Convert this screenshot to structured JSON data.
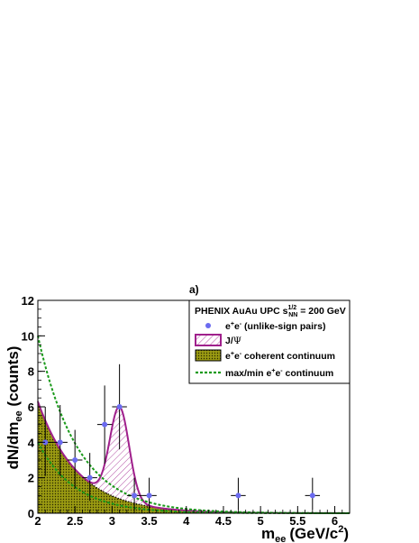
{
  "chart_data": {
    "type": "scatter",
    "panel_label": "a)",
    "xlabel": "m",
    "xlabel_sub": "ee",
    "xlabel_units": "(GeV/c",
    "xlabel_units_sup": "2",
    "xlabel_units_close": ")",
    "ylabel": "dN/dm",
    "ylabel_sub": "ee",
    "ylabel_units": " (counts)",
    "xlim": [
      2,
      6.2
    ],
    "ylim": [
      0,
      12
    ],
    "x_ticks": [
      "2",
      "2.5",
      "3",
      "3.5",
      "4",
      "4.5",
      "5",
      "5.5",
      "6"
    ],
    "y_ticks": [
      "0",
      "2",
      "4",
      "6",
      "8",
      "10",
      "12"
    ],
    "legend": {
      "title": "PHENIX AuAu UPC s",
      "title_sup": "1/2",
      "title_sub": "NN",
      "title_rest": " = 200 GeV",
      "entries": [
        {
          "key": "data",
          "label": "e",
          "sup1": "+",
          "mid": "e",
          "sup2": "-",
          "rest": " (unlike-sign pairs)"
        },
        {
          "key": "jpsi",
          "label": "J/",
          "greek": "Ψ"
        },
        {
          "key": "continuum",
          "label": "e",
          "sup1": "+",
          "mid": "e",
          "sup2": "-",
          "rest": " coherent continuum"
        },
        {
          "key": "maxmin",
          "label": "max/min e",
          "sup1": "+",
          "mid": "e",
          "sup2": "-",
          "rest": " continuum"
        }
      ]
    },
    "colors": {
      "data": "#6b6bf0",
      "jpsi": "#a0208c",
      "continuum": "#9a9a12",
      "maxmin": "#1a9a1a"
    },
    "data_points": [
      {
        "x": 2.1,
        "y": 4,
        "xerr": 0.1,
        "yerr_low": 1.9,
        "yerr_high": 2.0
      },
      {
        "x": 2.3,
        "y": 4,
        "xerr": 0.1,
        "yerr_low": 1.9,
        "yerr_high": 2.1
      },
      {
        "x": 2.5,
        "y": 3,
        "xerr": 0.1,
        "yerr_low": 1.6,
        "yerr_high": 1.7
      },
      {
        "x": 2.7,
        "y": 2,
        "xerr": 0.1,
        "yerr_low": 1.3,
        "yerr_high": 1.4
      },
      {
        "x": 2.9,
        "y": 5,
        "xerr": 0.1,
        "yerr_low": 2.2,
        "yerr_high": 2.2
      },
      {
        "x": 3.1,
        "y": 6,
        "xerr": 0.1,
        "yerr_low": 2.4,
        "yerr_high": 2.4
      },
      {
        "x": 3.3,
        "y": 1,
        "xerr": 0.1,
        "yerr_low": 0.8,
        "yerr_high": 1.0
      },
      {
        "x": 3.5,
        "y": 1,
        "xerr": 0.1,
        "yerr_low": 0.8,
        "yerr_high": 1.0
      },
      {
        "x": 4.7,
        "y": 1,
        "xerr": 0.1,
        "yerr_low": 0.8,
        "yerr_high": 1.0
      },
      {
        "x": 5.7,
        "y": 1,
        "xerr": 0.1,
        "yerr_low": 0.8,
        "yerr_high": 1.0
      }
    ],
    "continuum_model": {
      "norm": 6.3,
      "slope": 1.86
    },
    "max_model": {
      "norm": 10.0,
      "slope": 1.86
    },
    "min_model": {
      "norm": 4.0,
      "slope": 2.0
    },
    "jpsi_model": {
      "mean": 3.1,
      "sigma": 0.13,
      "peak_total": 6.0
    }
  }
}
